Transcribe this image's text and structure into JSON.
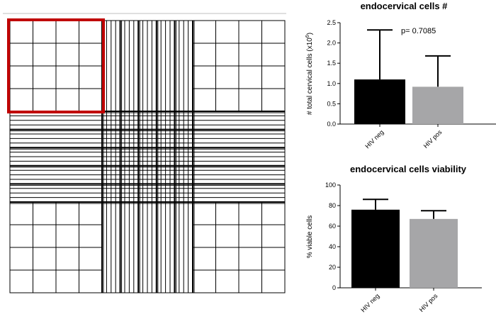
{
  "colors": {
    "grid_line": "#000000",
    "highlight_box": "#c00000",
    "bar_hiv_neg": "#000000",
    "bar_hiv_pos": "#a6a6a8",
    "separator": "#bfbfbf"
  },
  "hemocytometer": {
    "description_icon": "hemocytometer-grid",
    "highlighted_square": "top-left"
  },
  "chart_data": [
    {
      "type": "bar",
      "title": "endocervical cells #",
      "ylabel": "# total cervical cells (x10",
      "ylabel_sup": "6",
      "ylabel_end": ")",
      "categories": [
        "HIV neg",
        "HIV pos"
      ],
      "values": [
        1.1,
        0.92
      ],
      "error_upper": [
        2.32,
        1.68
      ],
      "ylim": [
        0,
        2.5
      ],
      "yticks": [
        "0.0",
        "0.5",
        "1.0",
        "1.5",
        "2.0",
        "2.5"
      ],
      "ytick_values": [
        0,
        0.5,
        1.0,
        1.5,
        2.0,
        2.5
      ],
      "annotation": "p=  0.7085",
      "legend": "none",
      "grid": false
    },
    {
      "type": "bar",
      "title": "endocervical cells viability",
      "ylabel": "% viable cells",
      "categories": [
        "HIV neg",
        "HIV pos"
      ],
      "values": [
        76,
        67
      ],
      "error_upper": [
        86,
        75
      ],
      "ylim": [
        0,
        100
      ],
      "yticks": [
        "0",
        "20",
        "40",
        "60",
        "80",
        "100"
      ],
      "ytick_values": [
        0,
        20,
        40,
        60,
        80,
        100
      ],
      "legend": "none",
      "grid": false
    }
  ]
}
